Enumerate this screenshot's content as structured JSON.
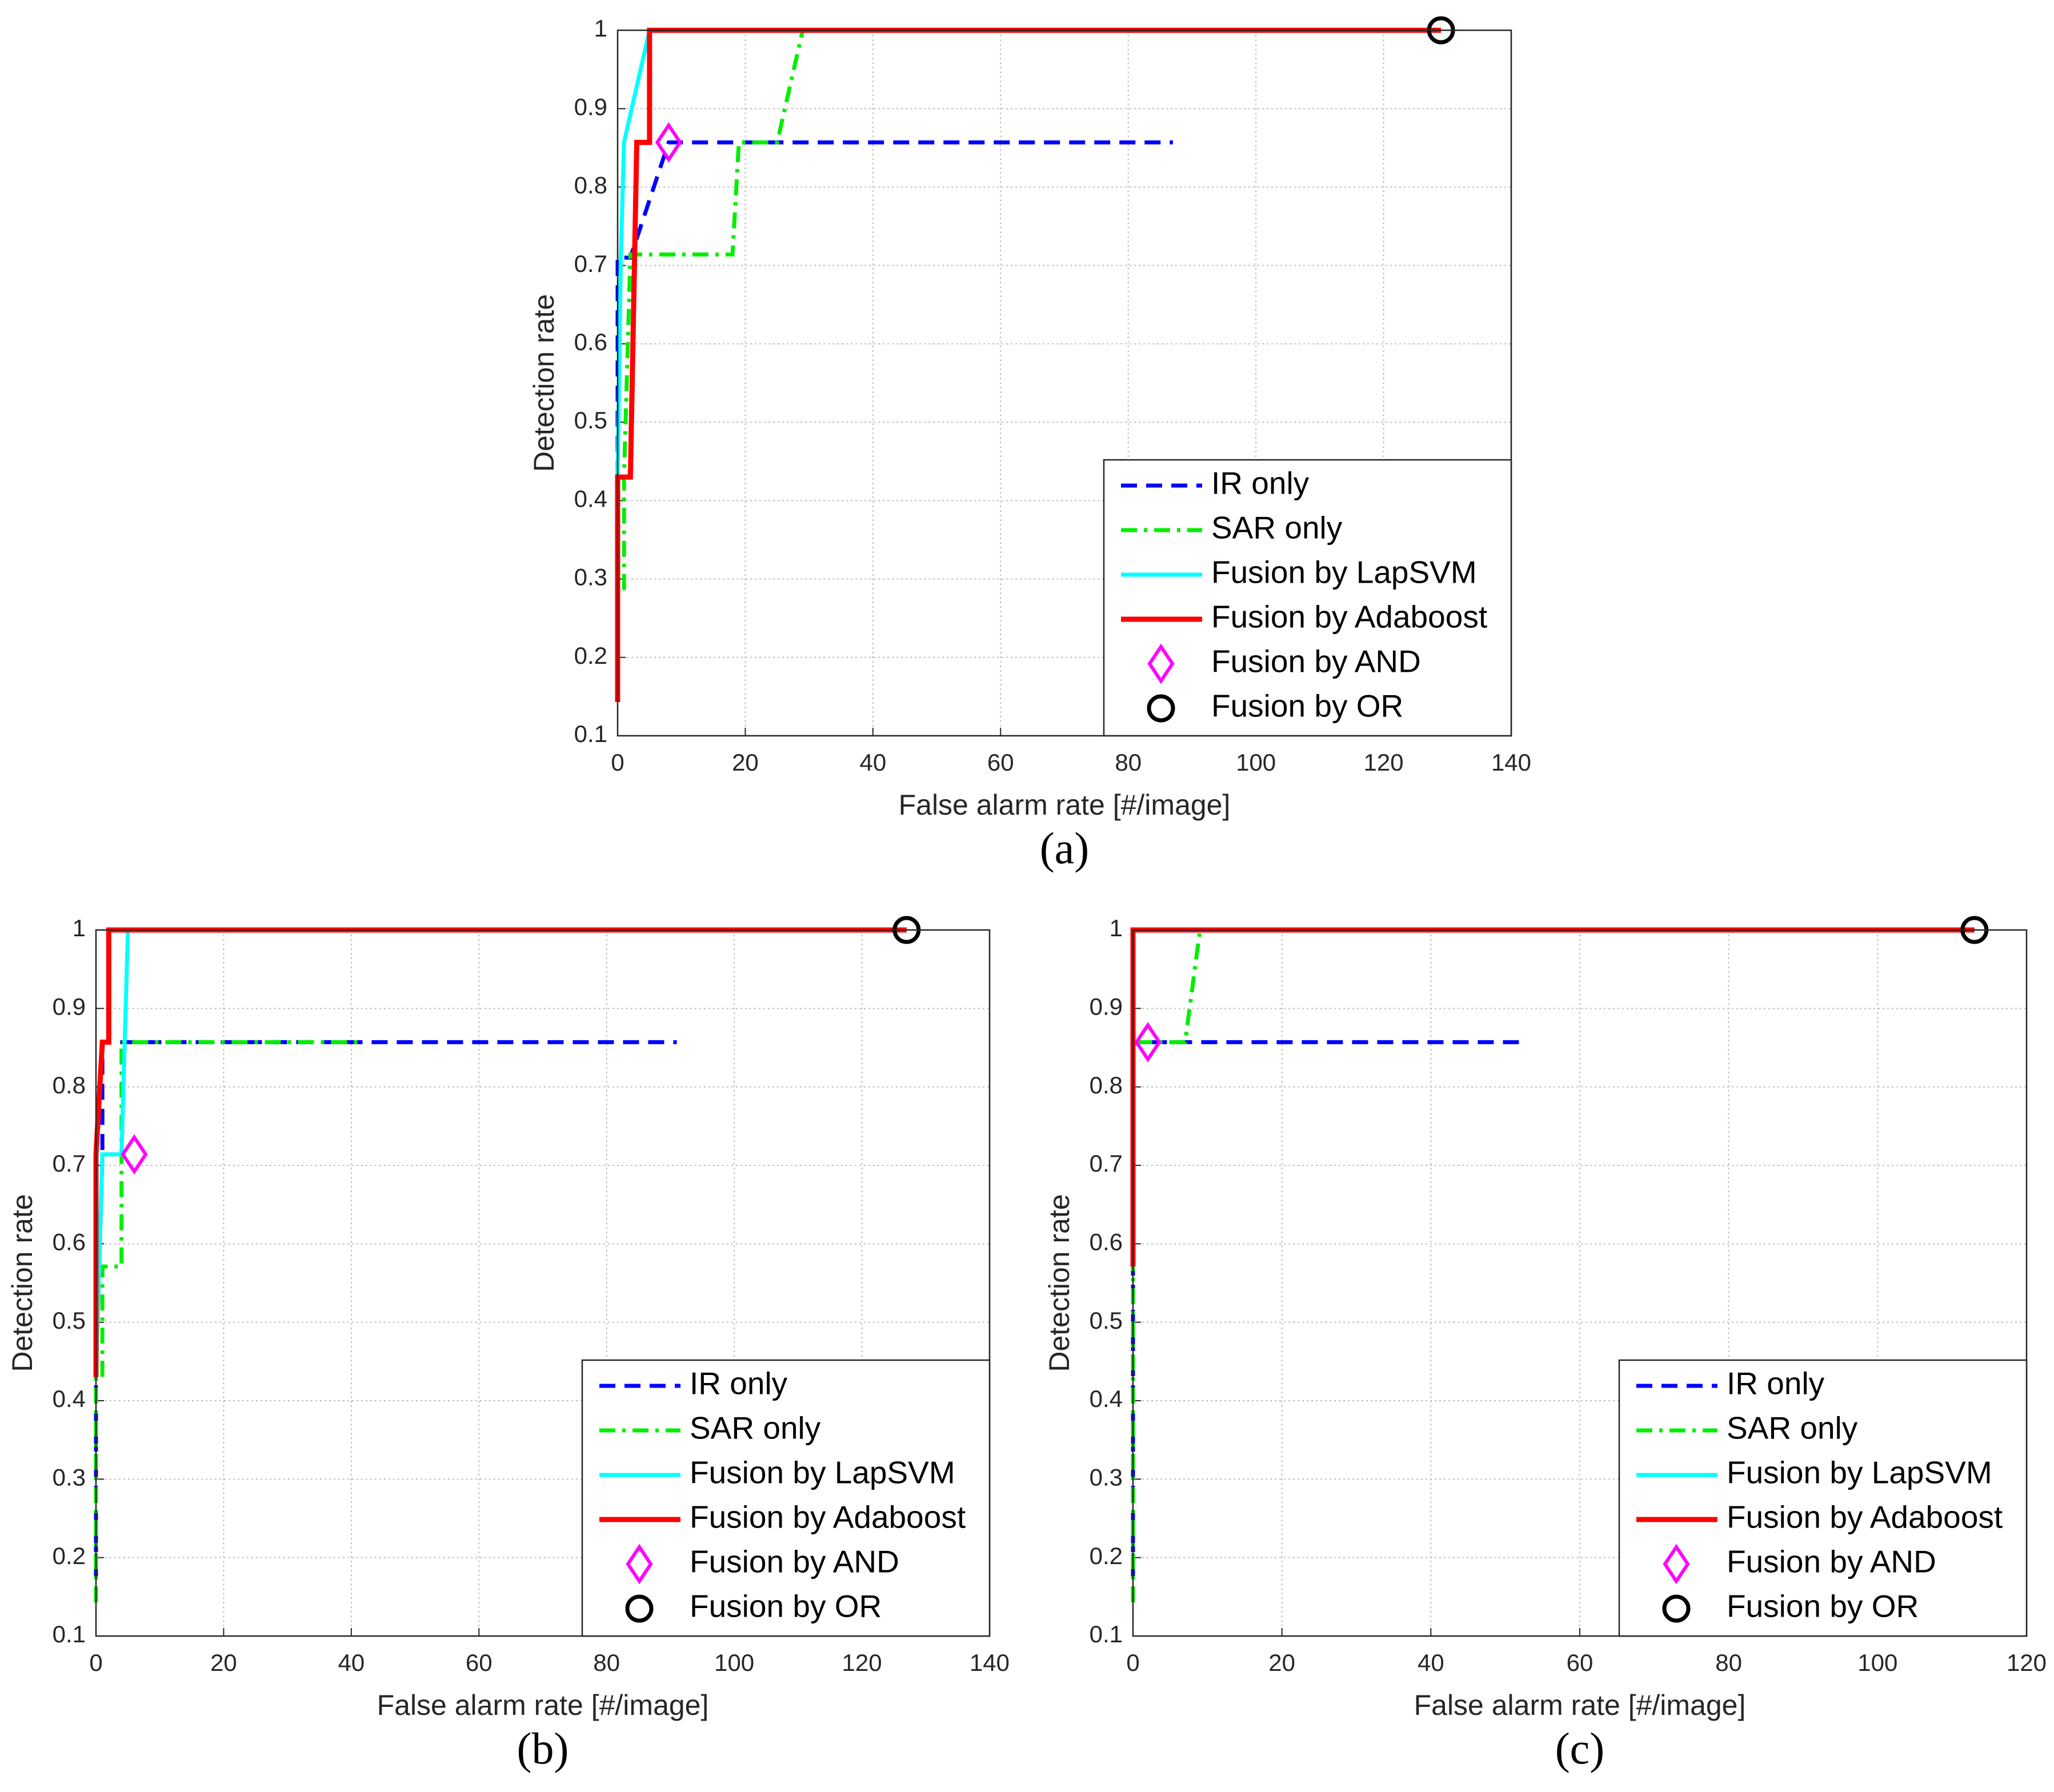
{
  "chart_data": [
    {
      "type": "line",
      "caption": "(a)",
      "xlabel": "False alarm rate [#/image]",
      "ylabel": "Detection rate",
      "xlim": [
        0,
        140
      ],
      "ylim": [
        0.1,
        1
      ],
      "xticks": [
        0,
        20,
        40,
        60,
        80,
        100,
        120,
        140
      ],
      "yticks": [
        0.1,
        0.2,
        0.3,
        0.4,
        0.5,
        0.6,
        0.7,
        0.8,
        0.9,
        1
      ],
      "grid": true,
      "legend": "lower right",
      "series": [
        {
          "name": "IR only",
          "color": "#0000ff",
          "linestyle": "dashed",
          "x": [
            0,
            0,
            2,
            8,
            87
          ],
          "values": [
            0.43,
            0.71,
            0.71,
            0.857,
            0.857
          ]
        },
        {
          "name": "SAR only",
          "color": "#00ee00",
          "linestyle": "dashdot",
          "x": [
            1,
            1,
            2,
            18,
            19,
            25,
            29
          ],
          "values": [
            0.286,
            0.43,
            0.714,
            0.714,
            0.857,
            0.857,
            1
          ]
        },
        {
          "name": "Fusion by LapSVM",
          "color": "#00ffff",
          "linestyle": "solid",
          "x": [
            0,
            0.5,
            1,
            5,
            129
          ],
          "values": [
            0.43,
            0.71,
            0.857,
            1,
            1
          ]
        },
        {
          "name": "Fusion by Adaboost",
          "color": "#ff0000",
          "linestyle": "solid",
          "x": [
            0,
            0,
            2,
            3,
            5,
            5,
            129
          ],
          "values": [
            0.143,
            0.43,
            0.43,
            0.857,
            0.857,
            1,
            1
          ]
        },
        {
          "name": "Fusion by AND",
          "color": "#ff00ff",
          "marker": "diamond",
          "x": [
            8
          ],
          "values": [
            0.857
          ]
        },
        {
          "name": "Fusion by OR",
          "color": "#000000",
          "marker": "circle",
          "x": [
            129
          ],
          "values": [
            1
          ]
        }
      ]
    },
    {
      "type": "line",
      "caption": "(b)",
      "xlabel": "False alarm rate [#/image]",
      "ylabel": "Detection rate",
      "xlim": [
        0,
        140
      ],
      "ylim": [
        0.1,
        1
      ],
      "xticks": [
        0,
        20,
        40,
        60,
        80,
        100,
        120,
        140
      ],
      "yticks": [
        0.1,
        0.2,
        0.3,
        0.4,
        0.5,
        0.6,
        0.7,
        0.8,
        0.9,
        1
      ],
      "grid": true,
      "legend": "lower right",
      "series": [
        {
          "name": "IR only",
          "color": "#0000ff",
          "linestyle": "dashed",
          "x": [
            0,
            0,
            1,
            1,
            91
          ],
          "values": [
            0.143,
            0.43,
            0.71,
            0.857,
            0.857
          ]
        },
        {
          "name": "SAR only",
          "color": "#00ee00",
          "linestyle": "dashdot",
          "x": [
            0,
            0,
            1,
            1,
            4,
            4,
            41
          ],
          "values": [
            0.143,
            0.43,
            0.43,
            0.571,
            0.571,
            0.857,
            0.857
          ]
        },
        {
          "name": "Fusion by LapSVM",
          "color": "#00ffff",
          "linestyle": "solid",
          "x": [
            0,
            1,
            4,
            5
          ],
          "values": [
            0.43,
            0.714,
            0.714,
            1
          ]
        },
        {
          "name": "Fusion by Adaboost",
          "color": "#ff0000",
          "linestyle": "solid",
          "x": [
            0,
            0,
            1,
            2,
            2,
            127
          ],
          "values": [
            0.43,
            0.714,
            0.857,
            0.857,
            1,
            1
          ]
        },
        {
          "name": "Fusion by AND",
          "color": "#ff00ff",
          "marker": "diamond",
          "x": [
            6
          ],
          "values": [
            0.714
          ]
        },
        {
          "name": "Fusion by OR",
          "color": "#000000",
          "marker": "circle",
          "x": [
            127
          ],
          "values": [
            1
          ]
        }
      ]
    },
    {
      "type": "line",
      "caption": "(c)",
      "xlabel": "False alarm rate [#/image]",
      "ylabel": "Detection rate",
      "xlim": [
        0,
        120
      ],
      "ylim": [
        0.1,
        1
      ],
      "xticks": [
        0,
        20,
        40,
        60,
        80,
        100,
        120
      ],
      "yticks": [
        0.1,
        0.2,
        0.3,
        0.4,
        0.5,
        0.6,
        0.7,
        0.8,
        0.9,
        1
      ],
      "grid": true,
      "legend": "lower right",
      "series": [
        {
          "name": "IR only",
          "color": "#0000ff",
          "linestyle": "dashed",
          "x": [
            0,
            0,
            0,
            53
          ],
          "values": [
            0.143,
            0.571,
            0.857,
            0.857
          ]
        },
        {
          "name": "SAR only",
          "color": "#00ee00",
          "linestyle": "dashdot",
          "x": [
            0,
            0,
            0,
            7,
            9
          ],
          "values": [
            0.143,
            0.571,
            0.857,
            0.857,
            1
          ]
        },
        {
          "name": "Fusion by LapSVM",
          "color": "#00ffff",
          "linestyle": "solid",
          "x": [
            0,
            0,
            113
          ],
          "values": [
            0.571,
            1,
            1
          ]
        },
        {
          "name": "Fusion by Adaboost",
          "color": "#ff0000",
          "linestyle": "solid",
          "x": [
            0,
            0,
            113
          ],
          "values": [
            0.571,
            1,
            1
          ]
        },
        {
          "name": "Fusion by AND",
          "color": "#ff00ff",
          "marker": "diamond",
          "x": [
            2
          ],
          "values": [
            0.857
          ]
        },
        {
          "name": "Fusion by OR",
          "color": "#000000",
          "marker": "circle",
          "x": [
            113
          ],
          "values": [
            1
          ]
        }
      ]
    }
  ]
}
